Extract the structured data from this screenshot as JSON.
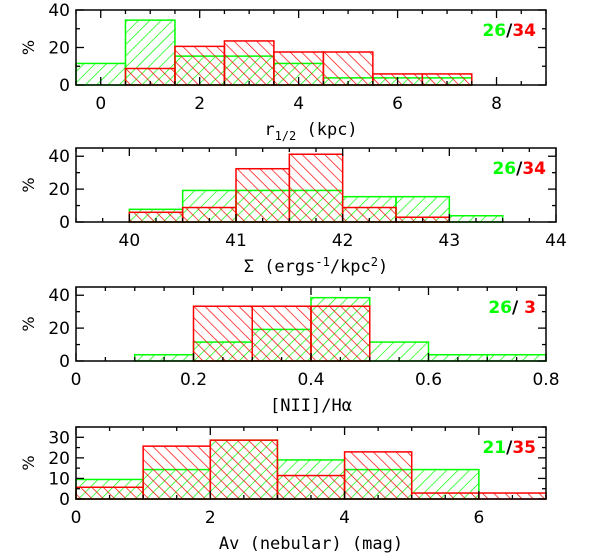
{
  "figure": {
    "colors": {
      "green": "#00ff00",
      "red": "#ff0000",
      "axis": "#000000"
    }
  },
  "chart_data": [
    {
      "type": "histogram",
      "xlabel": "r1/2 (kpc)",
      "xlabel_main": "r",
      "xlabel_sub": "1/2",
      "xlabel_rest": " (kpc)",
      "ylabel": "%",
      "xlim": [
        -0.5,
        9
      ],
      "ylim": [
        0,
        40
      ],
      "xticks": [
        0,
        2,
        4,
        6,
        8
      ],
      "yticks": [
        0,
        20,
        40
      ],
      "bin_edges": [
        -0.5,
        0.5,
        1.5,
        2.5,
        3.5,
        4.5,
        5.5,
        6.5,
        7.5
      ],
      "series": [
        {
          "color": "green",
          "count": "26",
          "values": [
            11.5,
            34.6,
            15.4,
            15.4,
            11.5,
            3.8,
            3.8,
            3.8
          ]
        },
        {
          "color": "red",
          "count": "34",
          "values": [
            0,
            8.8,
            20.6,
            23.5,
            17.6,
            17.6,
            5.9,
            5.9
          ]
        }
      ],
      "counts_sep": "/"
    },
    {
      "type": "histogram",
      "xlabel": "Σ (ergs-1/kpc2)",
      "xlabel_main": "Σ (ergs",
      "xlabel_sub": "-1",
      "xlabel_mid": "/kpc",
      "xlabel_sup": "2",
      "xlabel_rest": ")",
      "ylabel": "%",
      "xlim": [
        39.5,
        44
      ],
      "ylim": [
        0,
        45
      ],
      "xticks": [
        40,
        41,
        42,
        43,
        44
      ],
      "yticks": [
        0,
        20,
        40
      ],
      "bin_edges": [
        40,
        40.5,
        41,
        41.5,
        42,
        42.5,
        43,
        43.5
      ],
      "series": [
        {
          "color": "green",
          "count": "26",
          "values": [
            7.7,
            19.2,
            19.2,
            19.2,
            15.4,
            15.4,
            3.8
          ]
        },
        {
          "color": "red",
          "count": "34",
          "values": [
            5.9,
            8.8,
            32.4,
            41.2,
            8.8,
            2.9,
            0
          ]
        }
      ],
      "counts_sep": "/"
    },
    {
      "type": "histogram",
      "xlabel": "[NII]/Hα",
      "ylabel": "%",
      "xlim": [
        0,
        0.8
      ],
      "ylim": [
        0,
        45
      ],
      "xticks": [
        "0",
        "0.2",
        "0.4",
        "0.6",
        "0.8"
      ],
      "xtick_values": [
        0,
        0.2,
        0.4,
        0.6,
        0.8
      ],
      "yticks": [
        0,
        20,
        40
      ],
      "bin_edges": [
        0.1,
        0.2,
        0.3,
        0.4,
        0.5,
        0.6,
        0.7,
        0.8
      ],
      "series": [
        {
          "color": "green",
          "count": "26",
          "values": [
            3.8,
            11.5,
            19.2,
            38.5,
            11.5,
            3.8,
            3.8
          ]
        },
        {
          "color": "red",
          "count": "3",
          "values": [
            0,
            33.3,
            33.3,
            33.3,
            0,
            0,
            0
          ]
        }
      ],
      "counts_sep": "/ "
    },
    {
      "type": "histogram",
      "xlabel": "Av (nebular) (mag)",
      "ylabel": "%",
      "xlim": [
        0,
        7
      ],
      "ylim": [
        0,
        35
      ],
      "xticks": [
        0,
        2,
        4,
        6
      ],
      "yticks": [
        0,
        10,
        20,
        30
      ],
      "bin_edges": [
        0,
        1,
        2,
        3,
        4,
        5,
        6,
        7
      ],
      "series": [
        {
          "color": "green",
          "count": "21",
          "values": [
            9.5,
            14.3,
            28.6,
            19.0,
            14.3,
            14.3,
            0
          ]
        },
        {
          "color": "red",
          "count": "35",
          "values": [
            5.7,
            25.7,
            28.6,
            11.4,
            22.9,
            2.9,
            2.9
          ]
        }
      ],
      "counts_sep": "/"
    }
  ]
}
